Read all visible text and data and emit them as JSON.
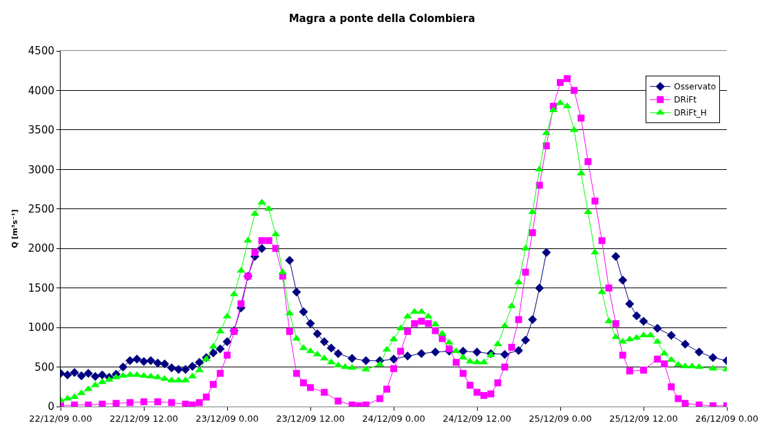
{
  "chart_data": {
    "type": "line",
    "title": "Magra a ponte della Colombiera",
    "ylabel": "Q [m³s⁻¹]",
    "xlim": [
      "--12-22T00:00",
      "--12-26T00:00"
    ],
    "xticks": [
      {
        "value": "--12-22T00:00",
        "label": "22/12/09 0.00"
      },
      {
        "value": "--12-22T12:00",
        "label": "22/12/09 12.00"
      },
      {
        "value": "--12-23T00:00",
        "label": "23/12/09 0.00"
      },
      {
        "value": "--12-23T12:00",
        "label": "23/12/09 12.00"
      },
      {
        "value": "--12-24T00:00",
        "label": "24/12/09 0.00"
      },
      {
        "value": "--12-24T12:00",
        "label": "24/12/09 12.00"
      },
      {
        "value": "--12-25T00:00",
        "label": "25/12/09 0.00"
      },
      {
        "value": "--12-25T12:00",
        "label": "25/12/09 12.00"
      },
      {
        "value": "--12-26T00:00",
        "label": "26/12/09 0.00"
      }
    ],
    "ylim": [
      0,
      4500
    ],
    "yticks": [
      0,
      500,
      1000,
      1500,
      2000,
      2500,
      3000,
      3500,
      4000,
      4500
    ],
    "grid": "y",
    "legend": "top right",
    "series": [
      {
        "name": "Osservato",
        "color": "#000080",
        "marker": "diamond",
        "x": [
          "--12-22T00:00",
          "--12-22T01:00",
          "--12-22T02:00",
          "--12-22T03:00",
          "--12-22T04:00",
          "--12-22T05:00",
          "--12-22T06:00",
          "--12-22T07:00",
          "--12-22T08:00",
          "--12-22T09:00",
          "--12-22T10:00",
          "--12-22T11:00",
          "--12-22T12:00",
          "--12-22T13:00",
          "--12-22T14:00",
          "--12-22T15:00",
          "--12-22T16:00",
          "--12-22T17:00",
          "--12-22T18:00",
          "--12-22T19:00",
          "--12-22T20:00",
          "--12-22T21:00",
          "--12-22T22:00",
          "--12-22T23:00",
          "--12-23T00:00",
          "--12-23T01:00",
          "--12-23T02:00",
          "--12-23T03:00",
          "--12-23T04:00",
          "--12-23T05:00",
          "--12-23T06:00",
          "--12-23T07:00",
          "--12-23T08:00",
          "--12-23T09:00",
          "--12-23T10:00",
          "--12-23T11:00",
          "--12-23T12:00",
          "--12-23T13:00",
          "--12-23T14:00",
          "--12-23T15:00",
          "--12-23T16:00",
          "--12-23T18:00",
          "--12-23T20:00",
          "--12-23T22:00",
          "--12-24T00:00",
          "--12-24T02:00",
          "--12-24T04:00",
          "--12-24T06:00",
          "--12-24T08:00",
          "--12-24T10:00",
          "--12-24T12:00",
          "--12-24T14:00",
          "--12-24T16:00",
          "--12-24T18:00",
          "--12-24T19:00",
          "--12-24T20:00",
          "--12-24T21:00",
          "--12-24T22:00",
          "--12-24T23:00",
          "--12-25T00:00",
          "--12-25T02:00",
          "--12-25T04:00",
          "--12-25T06:00",
          "--12-25T08:00",
          "--12-25T09:00",
          "--12-25T10:00",
          "--12-25T11:00",
          "--12-25T12:00",
          "--12-25T14:00",
          "--12-25T16:00",
          "--12-25T18:00",
          "--12-25T20:00",
          "--12-25T22:00",
          "--12-26T00:00"
        ],
        "values": [
          420,
          400,
          430,
          390,
          420,
          380,
          400,
          370,
          410,
          500,
          580,
          600,
          570,
          580,
          550,
          540,
          490,
          470,
          470,
          510,
          560,
          620,
          680,
          730,
          820,
          960,
          1250,
          1650,
          1900,
          2000,
          null,
          null,
          null,
          1850,
          1450,
          1200,
          1050,
          920,
          820,
          740,
          670,
          610,
          580,
          580,
          600,
          640,
          670,
          690,
          700,
          700,
          690,
          670,
          660,
          710,
          840,
          1100,
          1500,
          1950,
          null,
          null,
          null,
          null,
          null,
          1900,
          1600,
          1300,
          1150,
          1080,
          990,
          900,
          790,
          690,
          620,
          580
        ]
      },
      {
        "name": "DRiFt",
        "color": "#ff00ff",
        "marker": "square",
        "x": [
          "--12-22T00:00",
          "--12-22T02:00",
          "--12-22T04:00",
          "--12-22T06:00",
          "--12-22T08:00",
          "--12-22T10:00",
          "--12-22T12:00",
          "--12-22T14:00",
          "--12-22T16:00",
          "--12-22T18:00",
          "--12-22T19:00",
          "--12-22T20:00",
          "--12-22T21:00",
          "--12-22T22:00",
          "--12-22T23:00",
          "--12-23T00:00",
          "--12-23T01:00",
          "--12-23T02:00",
          "--12-23T03:00",
          "--12-23T04:00",
          "--12-23T05:00",
          "--12-23T06:00",
          "--12-23T07:00",
          "--12-23T08:00",
          "--12-23T09:00",
          "--12-23T10:00",
          "--12-23T11:00",
          "--12-23T12:00",
          "--12-23T14:00",
          "--12-23T16:00",
          "--12-23T18:00",
          "--12-23T19:00",
          "--12-23T20:00",
          "--12-23T22:00",
          "--12-23T23:00",
          "--12-24T00:00",
          "--12-24T01:00",
          "--12-24T02:00",
          "--12-24T03:00",
          "--12-24T04:00",
          "--12-24T05:00",
          "--12-24T06:00",
          "--12-24T07:00",
          "--12-24T08:00",
          "--12-24T09:00",
          "--12-24T10:00",
          "--12-24T11:00",
          "--12-24T12:00",
          "--12-24T13:00",
          "--12-24T14:00",
          "--12-24T15:00",
          "--12-24T16:00",
          "--12-24T17:00",
          "--12-24T18:00",
          "--12-24T19:00",
          "--12-24T20:00",
          "--12-24T21:00",
          "--12-24T22:00",
          "--12-24T23:00",
          "--12-25T00:00",
          "--12-25T01:00",
          "--12-25T02:00",
          "--12-25T03:00",
          "--12-25T04:00",
          "--12-25T05:00",
          "--12-25T06:00",
          "--12-25T07:00",
          "--12-25T08:00",
          "--12-25T09:00",
          "--12-25T10:00",
          "--12-25T12:00",
          "--12-25T14:00",
          "--12-25T15:00",
          "--12-25T16:00",
          "--12-25T17:00",
          "--12-25T18:00",
          "--12-25T20:00",
          "--12-25T22:00",
          "--12-26T00:00"
        ],
        "values": [
          10,
          20,
          20,
          30,
          40,
          50,
          60,
          60,
          50,
          30,
          20,
          50,
          120,
          280,
          420,
          650,
          950,
          1300,
          1650,
          1950,
          2100,
          2100,
          2000,
          1650,
          950,
          420,
          300,
          240,
          180,
          70,
          20,
          10,
          20,
          100,
          220,
          480,
          700,
          950,
          1050,
          1080,
          1050,
          960,
          860,
          730,
          560,
          420,
          270,
          180,
          140,
          160,
          300,
          500,
          750,
          1100,
          1700,
          2200,
          2800,
          3300,
          3800,
          4100,
          4150,
          4000,
          3650,
          3100,
          2600,
          2100,
          1500,
          1050,
          650,
          450,
          460,
          600,
          540,
          250,
          100,
          40,
          20,
          10,
          10
        ]
      },
      {
        "name": "DRiFt_H",
        "color": "#00ff00",
        "marker": "triangle",
        "x": [
          "--12-22T00:00",
          "--12-22T01:00",
          "--12-22T02:00",
          "--12-22T03:00",
          "--12-22T04:00",
          "--12-22T05:00",
          "--12-22T06:00",
          "--12-22T07:00",
          "--12-22T08:00",
          "--12-22T09:00",
          "--12-22T10:00",
          "--12-22T11:00",
          "--12-22T12:00",
          "--12-22T13:00",
          "--12-22T14:00",
          "--12-22T15:00",
          "--12-22T16:00",
          "--12-22T17:00",
          "--12-22T18:00",
          "--12-22T19:00",
          "--12-22T20:00",
          "--12-22T21:00",
          "--12-22T22:00",
          "--12-22T23:00",
          "--12-23T00:00",
          "--12-23T01:00",
          "--12-23T02:00",
          "--12-23T03:00",
          "--12-23T04:00",
          "--12-23T05:00",
          "--12-23T06:00",
          "--12-23T07:00",
          "--12-23T08:00",
          "--12-23T09:00",
          "--12-23T10:00",
          "--12-23T11:00",
          "--12-23T12:00",
          "--12-23T13:00",
          "--12-23T14:00",
          "--12-23T15:00",
          "--12-23T16:00",
          "--12-23T17:00",
          "--12-23T18:00",
          "--12-23T20:00",
          "--12-23T22:00",
          "--12-23T23:00",
          "--12-24T00:00",
          "--12-24T01:00",
          "--12-24T02:00",
          "--12-24T03:00",
          "--12-24T04:00",
          "--12-24T05:00",
          "--12-24T06:00",
          "--12-24T07:00",
          "--12-24T08:00",
          "--12-24T09:00",
          "--12-24T10:00",
          "--12-24T11:00",
          "--12-24T12:00",
          "--12-24T13:00",
          "--12-24T14:00",
          "--12-24T15:00",
          "--12-24T16:00",
          "--12-24T17:00",
          "--12-24T18:00",
          "--12-24T19:00",
          "--12-24T20:00",
          "--12-24T21:00",
          "--12-24T22:00",
          "--12-24T23:00",
          "--12-25T00:00",
          "--12-25T01:00",
          "--12-25T02:00",
          "--12-25T03:00",
          "--12-25T04:00",
          "--12-25T05:00",
          "--12-25T06:00",
          "--12-25T07:00",
          "--12-25T08:00",
          "--12-25T09:00",
          "--12-25T10:00",
          "--12-25T11:00",
          "--12-25T12:00",
          "--12-25T13:00",
          "--12-25T14:00",
          "--12-25T15:00",
          "--12-25T16:00",
          "--12-25T17:00",
          "--12-25T18:00",
          "--12-25T19:00",
          "--12-25T20:00",
          "--12-25T22:00",
          "--12-26T00:00"
        ],
        "values": [
          80,
          100,
          120,
          170,
          220,
          270,
          310,
          340,
          370,
          390,
          400,
          400,
          390,
          380,
          370,
          350,
          330,
          330,
          330,
          380,
          460,
          600,
          760,
          950,
          1140,
          1420,
          1720,
          2100,
          2440,
          2580,
          2500,
          2180,
          1700,
          1180,
          860,
          740,
          700,
          660,
          610,
          560,
          520,
          500,
          490,
          470,
          530,
          720,
          850,
          990,
          1140,
          1200,
          1200,
          1140,
          1040,
          920,
          810,
          700,
          620,
          570,
          560,
          560,
          650,
          790,
          1020,
          1270,
          1570,
          2000,
          2460,
          3000,
          3460,
          3750,
          3840,
          3800,
          3500,
          2950,
          2460,
          1950,
          1450,
          1080,
          880,
          820,
          850,
          870,
          900,
          900,
          820,
          670,
          590,
          530,
          510,
          510,
          500,
          480,
          470
        ]
      }
    ]
  }
}
